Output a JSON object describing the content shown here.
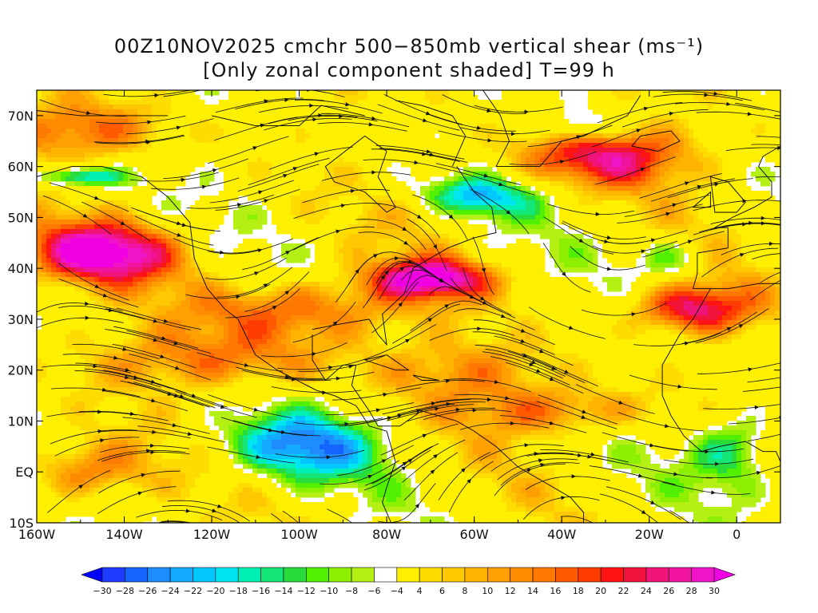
{
  "title": {
    "line1_prefix": "00Z10NOV2025 cmchr 500−850mb vertical shear (ms",
    "line1_sup": "⁻¹",
    "line1_suffix": ")",
    "line2": "[Only zonal component shaded] T=99 h"
  },
  "map": {
    "lon_labels": [
      "160W",
      "140W",
      "120W",
      "100W",
      "80W",
      "60W",
      "40W",
      "20W",
      "0"
    ],
    "lat_labels": [
      "70N",
      "60N",
      "50N",
      "40N",
      "30N",
      "20N",
      "10N",
      "EQ",
      "10S"
    ],
    "lon_values": [
      -160,
      -140,
      -120,
      -100,
      -80,
      -60,
      -40,
      -20,
      0
    ],
    "lat_values": [
      70,
      60,
      50,
      40,
      30,
      20,
      10,
      0,
      -10
    ],
    "extent": {
      "lon_min": -160,
      "lon_max": 10,
      "lat_min": -10,
      "lat_max": 75
    }
  },
  "colorbar": {
    "labels": [
      "−30",
      "−28",
      "−26",
      "−24",
      "−22",
      "−20",
      "−18",
      "−16",
      "−14",
      "−12",
      "−10",
      "−8",
      "−6",
      "−4",
      "4",
      "6",
      "8",
      "10",
      "12",
      "14",
      "16",
      "18",
      "20",
      "22",
      "24",
      "26",
      "28",
      "30"
    ],
    "colors": [
      "#1e3cff",
      "#1464ff",
      "#1e8cff",
      "#14aaff",
      "#00c8ff",
      "#00e6f0",
      "#00f0b4",
      "#14e678",
      "#28dc3c",
      "#50f000",
      "#8cf000",
      "#b4f014",
      "#ffffff",
      "#fff000",
      "#ffdc00",
      "#ffc800",
      "#ffb400",
      "#ffa000",
      "#ff8c00",
      "#ff7800",
      "#ff5a00",
      "#ff3c00",
      "#ff1414",
      "#f0143c",
      "#f01478",
      "#f014a0",
      "#f014c8"
    ],
    "under_color": "#0000ff",
    "over_color": "#f000e0"
  },
  "icons": {
    "streamlines": "streamline-arrows",
    "coastlines": "coastline-outline"
  }
}
